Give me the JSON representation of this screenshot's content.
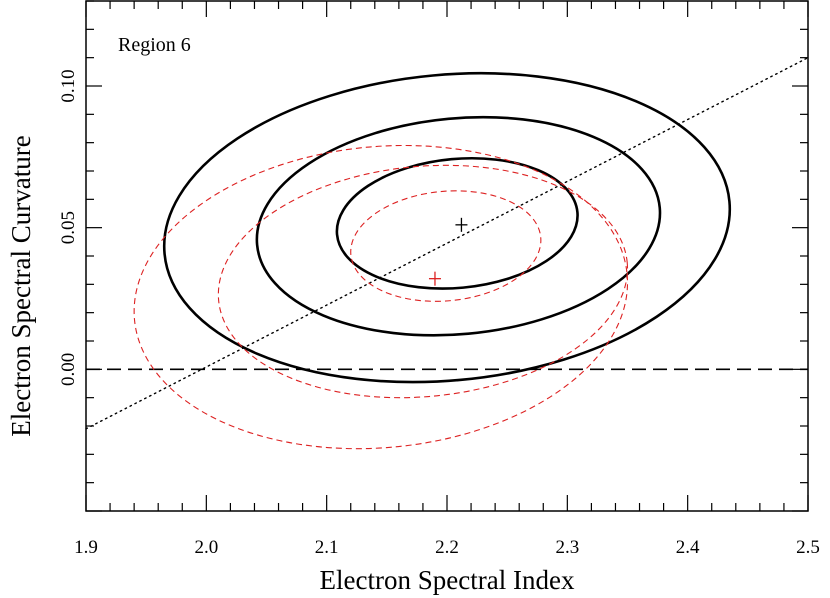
{
  "chart_data": {
    "type": "contour",
    "xlabel": "Electron Spectral Index",
    "ylabel": "Electron Spectral Curvature",
    "xlim": [
      1.9,
      2.5
    ],
    "ylim": [
      -0.05,
      0.13
    ],
    "x_ticks": [
      1.9,
      2.0,
      2.1,
      2.2,
      2.3,
      2.4,
      2.5
    ],
    "x_tick_labels": [
      "1.9",
      "2.0",
      "2.1",
      "2.2",
      "2.3",
      "2.4",
      "2.5"
    ],
    "y_ticks": [
      0.0,
      0.05,
      0.1
    ],
    "y_tick_labels": [
      "0.00",
      "0.05",
      "0.10"
    ],
    "annotation": "Region 6",
    "grid": false,
    "reference_lines": [
      {
        "style": "dashed",
        "color": "#000000",
        "orientation": "horizontal",
        "y": 0.0
      },
      {
        "style": "dotted",
        "color": "#000000",
        "x": [
          1.9,
          2.5
        ],
        "y": [
          -0.021,
          0.11
        ]
      }
    ],
    "series": [
      {
        "color": "#000000",
        "linestyle": "solid",
        "best_fit": [
          2.212,
          0.051
        ],
        "contours": [
          {
            "center": [
              2.2085,
              0.0515
            ],
            "x_extent": [
              2.11,
              2.31
            ],
            "y_extent": [
              0.028,
              0.074
            ]
          },
          {
            "center": [
              2.2095,
              0.0505
            ],
            "x_extent": [
              2.042,
              2.377
            ],
            "y_extent": [
              0.012,
              0.089
            ]
          },
          {
            "center": [
              2.2,
              0.05
            ],
            "x_extent": [
              1.965,
              2.435
            ],
            "y_extent": [
              -0.005,
              0.104
            ]
          }
        ]
      },
      {
        "color": "#dd2222",
        "linestyle": "dashed",
        "best_fit": [
          2.19,
          0.032
        ],
        "contours": [
          {
            "center": [
              2.199,
              0.0435
            ],
            "x_extent": [
              2.12,
              2.278
            ],
            "y_extent": [
              0.024,
              0.063
            ]
          },
          {
            "center": [
              2.18,
              0.031
            ],
            "x_extent": [
              2.01,
              2.35
            ],
            "y_extent": [
              -0.01,
              0.072
            ]
          },
          {
            "center": [
              2.145,
              0.0255
            ],
            "x_extent": [
              1.94,
              2.35
            ],
            "y_extent": [
              -0.023,
              0.084
            ]
          }
        ]
      }
    ]
  }
}
